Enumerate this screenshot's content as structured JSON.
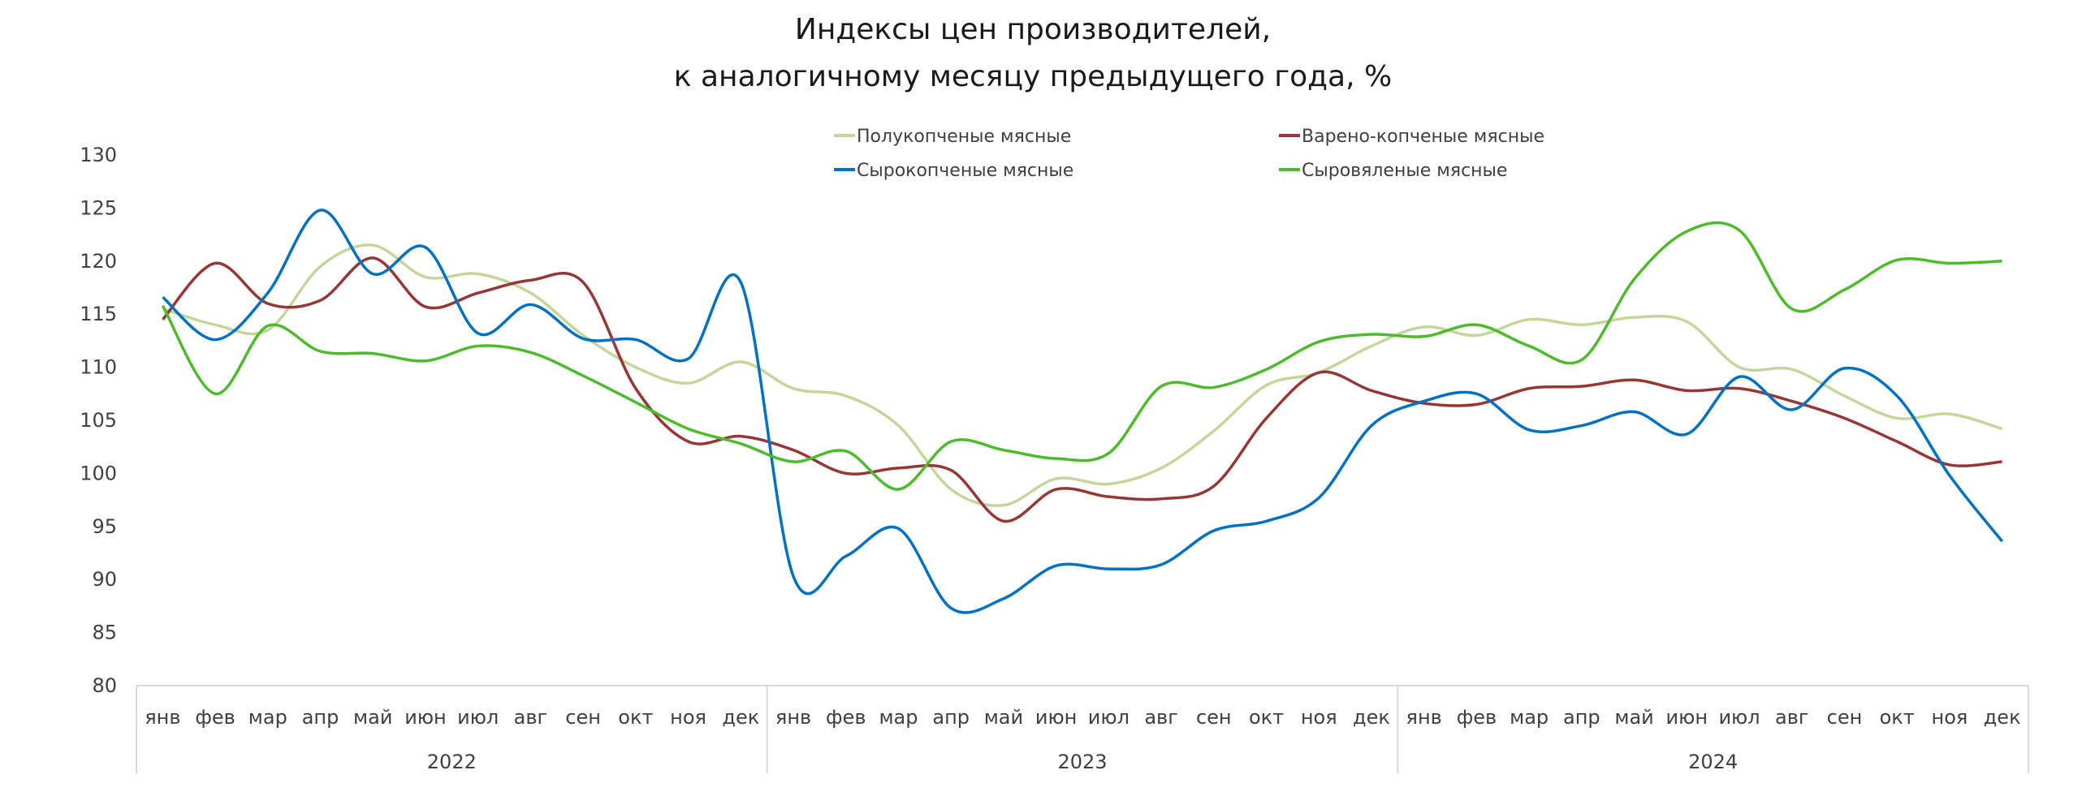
{
  "chart_data": {
    "type": "line",
    "title": [
      "Индексы цен производителей,",
      "к аналогичному месяцу предыдущего года, %"
    ],
    "xlabel": "",
    "ylabel": "",
    "ylim": [
      80,
      130
    ],
    "yticks": [
      80,
      85,
      90,
      95,
      100,
      105,
      110,
      115,
      120,
      125,
      130
    ],
    "grid": false,
    "legend_position": "top-center",
    "months": [
      "янв",
      "фев",
      "мар",
      "апр",
      "май",
      "июн",
      "июл",
      "авг",
      "сен",
      "окт",
      "ноя",
      "дек"
    ],
    "years": [
      "2022",
      "2023",
      "2024"
    ],
    "series": [
      {
        "name": "Полукопченые мясные",
        "color": "#c4d79b",
        "values": [
          115.5,
          114,
          113.5,
          119.5,
          121.5,
          118.5,
          118.8,
          117,
          113,
          110,
          108.5,
          110.5,
          108,
          107.3,
          104.5,
          98.5,
          97,
          99.5,
          99,
          100.5,
          104,
          108.3,
          109.5,
          112,
          113.8,
          113,
          114.5,
          114,
          114.7,
          114.3,
          110,
          109.8,
          107.3,
          105.2,
          105.6,
          104.2
        ]
      },
      {
        "name": "Варено-копченые мясные",
        "color": "#953735",
        "values": [
          114.5,
          119.8,
          116,
          116.3,
          120.3,
          115.7,
          117,
          118.2,
          118,
          108,
          103,
          103.5,
          102.2,
          100,
          100.5,
          100.3,
          95.5,
          98.5,
          97.8,
          97.6,
          98.8,
          105.2,
          109.5,
          107.8,
          106.6,
          106.5,
          108,
          108.2,
          108.8,
          107.8,
          108,
          106.8,
          105.2,
          103,
          100.8,
          101.1
        ]
      },
      {
        "name": "Сырокопченые мясные",
        "color": "#0070c0",
        "values": [
          116.6,
          112.6,
          117,
          124.8,
          118.8,
          121.3,
          113.2,
          115.9,
          112.7,
          112.6,
          110.8,
          118,
          90.3,
          92.2,
          94.8,
          87.3,
          88.2,
          91.3,
          91,
          91.4,
          94.6,
          95.5,
          97.7,
          104.5,
          106.8,
          107.5,
          104.1,
          104.5,
          105.8,
          103.7,
          109.1,
          106,
          109.9,
          107.3,
          99.8,
          93.6
        ]
      },
      {
        "name": "Сыровяленые мясные",
        "color": "#4cbb2c",
        "values": [
          115.8,
          107.5,
          113.9,
          111.5,
          111.3,
          110.6,
          112,
          111.4,
          109.2,
          106.7,
          104.2,
          102.8,
          101.1,
          102.1,
          98.5,
          103,
          102.2,
          101.4,
          101.9,
          108.2,
          108.1,
          109.8,
          112.4,
          113.1,
          112.9,
          114,
          112,
          110.7,
          118.3,
          122.8,
          122.9,
          115.5,
          117.3,
          120.1,
          119.8,
          120
        ]
      }
    ]
  }
}
